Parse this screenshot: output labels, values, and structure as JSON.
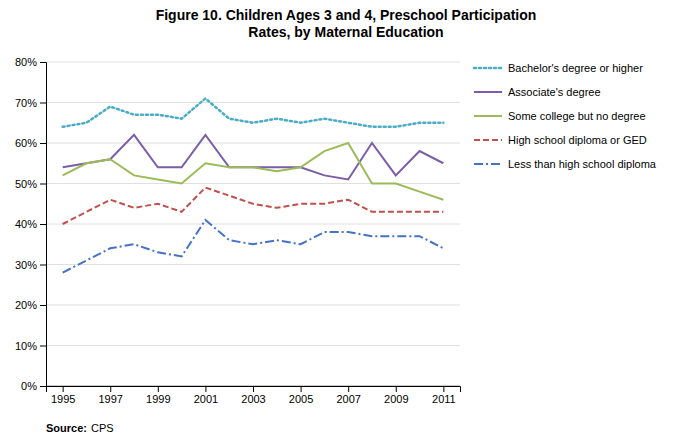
{
  "chart_data": {
    "type": "line",
    "title": "Figure 10. Children Ages 3 and 4, Preschool Participation\nRates, by Maternal Education",
    "annotations": [
      "Source:",
      "CPS"
    ],
    "x": [
      1995,
      1996,
      1997,
      1998,
      1999,
      2000,
      2001,
      2002,
      2003,
      2004,
      2005,
      2006,
      2007,
      2008,
      2009,
      2010,
      2011
    ],
    "series": [
      {
        "name": "Bachelor's degree or higher",
        "color": "#4BACC6",
        "line_style": "dotted",
        "values": [
          0.64,
          0.65,
          0.69,
          0.67,
          0.67,
          0.66,
          0.71,
          0.66,
          0.65,
          0.66,
          0.65,
          0.66,
          0.65,
          0.64,
          0.64,
          0.65,
          0.65
        ]
      },
      {
        "name": "Associate's degree",
        "color": "#7B5EA7",
        "line_style": "solid",
        "values": [
          0.54,
          0.55,
          0.56,
          0.62,
          0.54,
          0.54,
          0.62,
          0.54,
          0.54,
          0.54,
          0.54,
          0.52,
          0.51,
          0.6,
          0.52,
          0.58,
          0.55
        ]
      },
      {
        "name": "Some college but no degree",
        "color": "#9BBB59",
        "line_style": "solid",
        "values": [
          0.52,
          0.55,
          0.56,
          0.52,
          0.51,
          0.5,
          0.55,
          0.54,
          0.54,
          0.53,
          0.54,
          0.58,
          0.6,
          0.5,
          0.5,
          0.48,
          0.46
        ]
      },
      {
        "name": "High school diploma or GED",
        "color": "#C0504D",
        "line_style": "dashed",
        "values": [
          0.4,
          0.43,
          0.46,
          0.44,
          0.45,
          0.43,
          0.49,
          0.47,
          0.45,
          0.44,
          0.45,
          0.45,
          0.46,
          0.43,
          0.43,
          0.43,
          0.43
        ]
      },
      {
        "name": "Less than high school diploma",
        "color": "#4472C4",
        "line_style": "dashdot",
        "values": [
          0.28,
          0.31,
          0.34,
          0.35,
          0.33,
          0.32,
          0.41,
          0.36,
          0.35,
          0.36,
          0.35,
          0.38,
          0.38,
          0.37,
          0.37,
          0.37,
          0.34
        ]
      }
    ],
    "xlim": [
      1994.3,
      2011.7
    ],
    "xticks": [
      1995,
      1997,
      1999,
      2001,
      2003,
      2005,
      2007,
      2009,
      2011
    ],
    "ylim": [
      0,
      0.8
    ],
    "yticks": [
      {
        "value": 0.0,
        "label": "0%"
      },
      {
        "value": 0.1,
        "label": "10%"
      },
      {
        "value": 0.2,
        "label": "20%"
      },
      {
        "value": 0.3,
        "label": "30%"
      },
      {
        "value": 0.4,
        "label": "40%"
      },
      {
        "value": 0.5,
        "label": "50%"
      },
      {
        "value": 0.6,
        "label": "60%"
      },
      {
        "value": 0.7,
        "label": "70%"
      },
      {
        "value": 0.8,
        "label": "80%"
      }
    ],
    "grid": true,
    "legend": "right"
  }
}
